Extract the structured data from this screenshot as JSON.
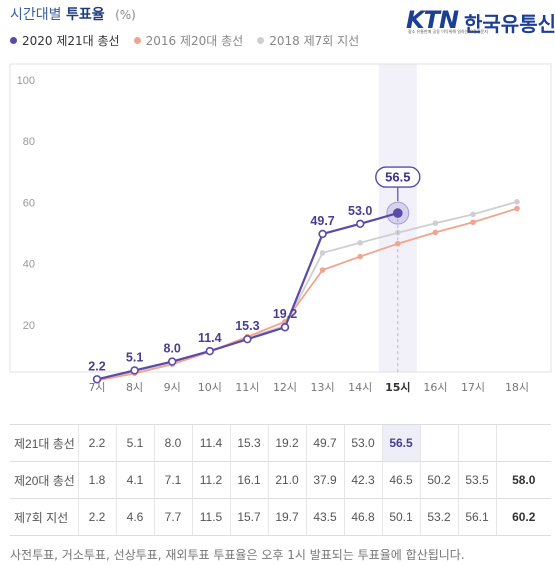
{
  "header": {
    "title_part1": "시간대별",
    "title_part2": "투표율",
    "title_unit": "(%)"
  },
  "logo": {
    "abbr": "KTN",
    "name": "한국유통신문",
    "tagline": "중소 유통판매 공동 이익위해 일하는 유통전문지",
    "brand_color": "#1c3f94"
  },
  "chart_data": {
    "type": "line",
    "title": "시간대별 투표율",
    "unit": "(%)",
    "categories": [
      "7시",
      "8시",
      "9시",
      "10시",
      "11시",
      "12시",
      "13시",
      "14시",
      "15시",
      "16시",
      "17시",
      "18시"
    ],
    "highlight_category": "15시",
    "ylim": [
      0,
      100
    ],
    "yticks": [
      20,
      40,
      60,
      80,
      100
    ],
    "series": [
      {
        "name": "2020 제21대 총선",
        "color": "#5b4aa8",
        "values": [
          2.2,
          5.1,
          8.0,
          11.4,
          15.3,
          19.2,
          49.7,
          53.0,
          56.5,
          null,
          null,
          null
        ]
      },
      {
        "name": "2016 제20대 총선",
        "color": "#f0a58f",
        "values": [
          1.8,
          4.1,
          7.1,
          11.2,
          16.1,
          21.0,
          37.9,
          42.3,
          46.5,
          50.2,
          53.5,
          58.0
        ]
      },
      {
        "name": "2018 제7회 지선",
        "color": "#cfcfd3",
        "values": [
          2.2,
          4.6,
          7.7,
          11.5,
          15.7,
          19.7,
          43.5,
          46.8,
          50.1,
          53.2,
          56.1,
          60.2
        ]
      }
    ],
    "callout": {
      "category": "15시",
      "value": "56.5"
    }
  },
  "table": {
    "rows": [
      {
        "label": "제21대 총선",
        "cells": [
          "2.2",
          "5.1",
          "8.0",
          "11.4",
          "15.3",
          "19.2",
          "49.7",
          "53.0",
          "56.5",
          "",
          "",
          ""
        ]
      },
      {
        "label": "제20대 총선",
        "cells": [
          "1.8",
          "4.1",
          "7.1",
          "11.2",
          "16.1",
          "21.0",
          "37.9",
          "42.3",
          "46.5",
          "50.2",
          "53.5",
          "58.0"
        ]
      },
      {
        "label": "제7회 지선",
        "cells": [
          "2.2",
          "4.6",
          "7.7",
          "11.5",
          "15.7",
          "19.7",
          "43.5",
          "46.8",
          "50.1",
          "53.2",
          "56.1",
          "60.2"
        ]
      }
    ]
  },
  "footnote": "사전투표, 거소투표, 선상투표, 재외투표 투표율은 오후 1시 발표되는 투표율에 합산됩니다."
}
